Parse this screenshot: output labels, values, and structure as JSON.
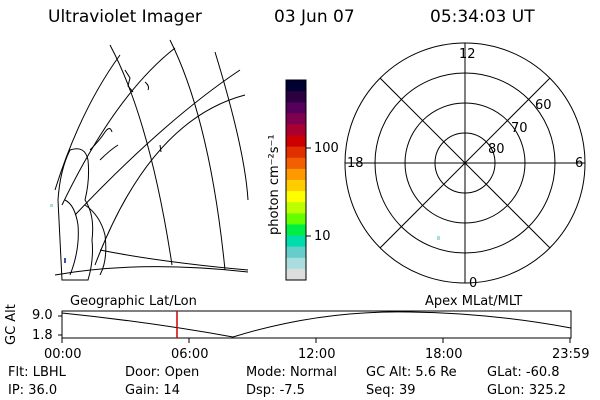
{
  "header": {
    "title": "Ultraviolet Imager",
    "date": "03 Jun 07",
    "time": "05:34:03 UT"
  },
  "colorbar": {
    "unit_label": "photon cm⁻²s⁻¹",
    "ticks": [
      "100",
      "10"
    ],
    "colors": [
      "#000033",
      "#2a0040",
      "#55005a",
      "#800050",
      "#aa0030",
      "#cc0000",
      "#e03000",
      "#f06000",
      "#ff9900",
      "#ffcc00",
      "#ffff00",
      "#bbff00",
      "#66ff00",
      "#00ee44",
      "#00ddaa",
      "#66cccc",
      "#aadddd",
      "#dddddd"
    ]
  },
  "polar_plot": {
    "mlt_labels": {
      "top": "12",
      "left": "18",
      "right": "6",
      "bottom": "0"
    },
    "lat_labels": [
      "60",
      "70",
      "80"
    ]
  },
  "panel_labels": {
    "left": "Geographic Lat/Lon",
    "right": "Apex MLat/MLT"
  },
  "altitude_strip": {
    "axis_label": "GC Alt",
    "y_ticks": [
      "9.0",
      "1.8"
    ],
    "x_ticks": [
      "00:00",
      "06:00",
      "12:00",
      "18:00",
      "23:59"
    ],
    "current_time_color": "#cc0000"
  },
  "status": {
    "row1": [
      {
        "label": "Flt:",
        "value": "LBHL"
      },
      {
        "label": "Door:",
        "value": "Open"
      },
      {
        "label": "Mode:",
        "value": "Normal"
      },
      {
        "label": "GC Alt:",
        "value": "5.6 Re"
      },
      {
        "label": "GLat:",
        "value": "-60.8"
      }
    ],
    "row2": [
      {
        "label": "IP:",
        "value": "36.0"
      },
      {
        "label": "Gain:",
        "value": "14"
      },
      {
        "label": "Dsp:",
        "value": "-7.5"
      },
      {
        "label": "Seq:",
        "value": "39"
      },
      {
        "label": "GLon:",
        "value": "325.2"
      }
    ]
  }
}
